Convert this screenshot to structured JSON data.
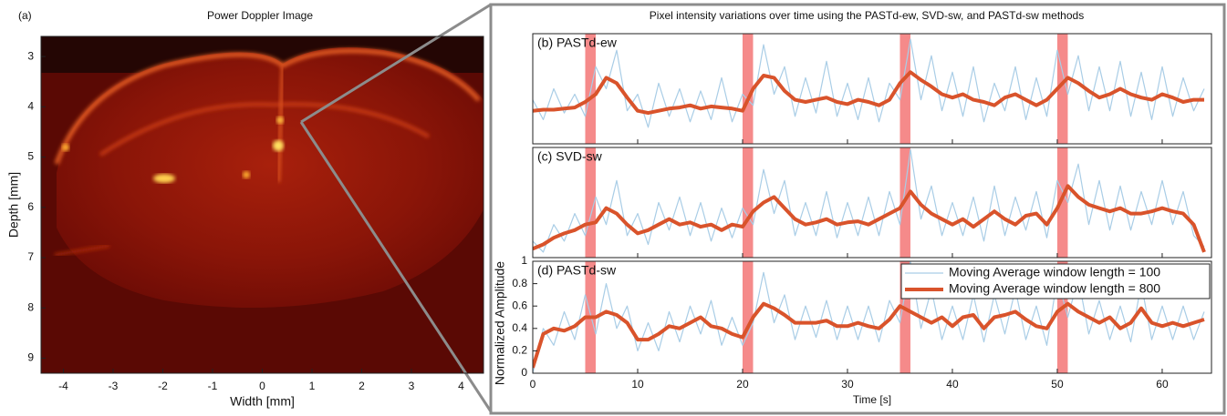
{
  "figure_title": "Pixel intensity variations over time using the PASTd-ew, SVD-sw, and PASTd-sw methods",
  "chart_data": [
    {
      "type": "image",
      "label": "(a)",
      "title": "Power Doppler Image",
      "x_label": "Width [mm]",
      "y_label": "Depth [mm]",
      "xlim": [
        -4.45,
        4.45
      ],
      "ylim": [
        2.6,
        9.3
      ],
      "y_inverted": true,
      "xticks": [
        -4,
        -3,
        -2,
        -1,
        0,
        1,
        2,
        3,
        4
      ],
      "yticks": [
        3,
        4,
        5,
        6,
        7,
        8,
        9
      ]
    },
    {
      "type": "line",
      "label": "(b) PASTd-ew",
      "xlim": [
        0,
        64.7
      ],
      "ylim": [
        0,
        1
      ],
      "highlights": [
        [
          5,
          6
        ],
        [
          20,
          21
        ],
        [
          35,
          36
        ],
        [
          50,
          51
        ]
      ],
      "highlight_color": "#f26d6d",
      "x": [
        0,
        1,
        2,
        3,
        4,
        5,
        6,
        7,
        8,
        9,
        10,
        11,
        12,
        13,
        14,
        15,
        16,
        17,
        18,
        19,
        20,
        21,
        22,
        23,
        24,
        25,
        26,
        27,
        28,
        29,
        30,
        31,
        32,
        33,
        34,
        35,
        36,
        37,
        38,
        39,
        40,
        41,
        42,
        43,
        44,
        45,
        46,
        47,
        48,
        49,
        50,
        51,
        52,
        53,
        54,
        55,
        56,
        57,
        58,
        59,
        60,
        61,
        62,
        63,
        64
      ],
      "series": [
        {
          "color": "#a9cde6",
          "width": 1.2,
          "values": [
            0.4,
            0.22,
            0.5,
            0.28,
            0.45,
            0.25,
            0.7,
            0.5,
            0.85,
            0.3,
            0.45,
            0.15,
            0.55,
            0.25,
            0.5,
            0.2,
            0.48,
            0.22,
            0.6,
            0.2,
            0.45,
            0.35,
            0.9,
            0.45,
            0.7,
            0.25,
            0.6,
            0.28,
            0.75,
            0.25,
            0.55,
            0.22,
            0.6,
            0.2,
            0.55,
            0.4,
            0.95,
            0.4,
            0.8,
            0.3,
            0.65,
            0.25,
            0.7,
            0.2,
            0.55,
            0.3,
            0.7,
            0.22,
            0.6,
            0.25,
            0.85,
            0.45,
            0.8,
            0.3,
            0.7,
            0.3,
            0.75,
            0.25,
            0.65,
            0.22,
            0.7,
            0.25,
            0.6,
            0.3,
            0.5
          ]
        },
        {
          "color": "#d9532b",
          "width": 4,
          "values": [
            0.3,
            0.31,
            0.31,
            0.32,
            0.33,
            0.38,
            0.45,
            0.6,
            0.55,
            0.42,
            0.3,
            0.28,
            0.3,
            0.32,
            0.33,
            0.35,
            0.32,
            0.34,
            0.33,
            0.32,
            0.3,
            0.5,
            0.62,
            0.6,
            0.48,
            0.4,
            0.38,
            0.4,
            0.42,
            0.38,
            0.36,
            0.4,
            0.38,
            0.35,
            0.4,
            0.55,
            0.65,
            0.58,
            0.52,
            0.45,
            0.42,
            0.45,
            0.4,
            0.38,
            0.35,
            0.42,
            0.45,
            0.4,
            0.35,
            0.4,
            0.5,
            0.6,
            0.55,
            0.48,
            0.42,
            0.45,
            0.5,
            0.45,
            0.42,
            0.4,
            0.45,
            0.42,
            0.38,
            0.4,
            0.4
          ]
        }
      ]
    },
    {
      "type": "line",
      "label": "(c) SVD-sw",
      "xlim": [
        0,
        64.7
      ],
      "ylim": [
        0,
        1
      ],
      "highlights": [
        [
          5,
          6
        ],
        [
          20,
          21
        ],
        [
          35,
          36
        ],
        [
          50,
          51
        ]
      ],
      "highlight_color": "#f26d6d",
      "x": [
        0,
        1,
        2,
        3,
        4,
        5,
        6,
        7,
        8,
        9,
        10,
        11,
        12,
        13,
        14,
        15,
        16,
        17,
        18,
        19,
        20,
        21,
        22,
        23,
        24,
        25,
        26,
        27,
        28,
        29,
        30,
        31,
        32,
        33,
        34,
        35,
        36,
        37,
        38,
        39,
        40,
        41,
        42,
        43,
        44,
        45,
        46,
        47,
        48,
        49,
        50,
        51,
        52,
        53,
        54,
        55,
        56,
        57,
        58,
        59,
        60,
        61,
        62,
        63,
        64
      ],
      "series": [
        {
          "color": "#a9cde6",
          "width": 1.2,
          "values": [
            0.15,
            0.05,
            0.3,
            0.15,
            0.4,
            0.2,
            0.55,
            0.3,
            0.7,
            0.2,
            0.4,
            0.12,
            0.5,
            0.25,
            0.55,
            0.2,
            0.5,
            0.15,
            0.45,
            0.18,
            0.45,
            0.3,
            0.8,
            0.4,
            0.7,
            0.2,
            0.5,
            0.2,
            0.6,
            0.18,
            0.5,
            0.2,
            0.55,
            0.2,
            0.6,
            0.3,
            0.98,
            0.35,
            0.65,
            0.2,
            0.5,
            0.2,
            0.55,
            0.15,
            0.65,
            0.2,
            0.55,
            0.25,
            0.6,
            0.18,
            0.7,
            0.5,
            0.85,
            0.3,
            0.7,
            0.25,
            0.65,
            0.25,
            0.6,
            0.3,
            0.7,
            0.3,
            0.6,
            0.2,
            0.1
          ]
        },
        {
          "color": "#d9532b",
          "width": 4,
          "values": [
            0.08,
            0.12,
            0.18,
            0.22,
            0.25,
            0.3,
            0.32,
            0.45,
            0.4,
            0.3,
            0.22,
            0.25,
            0.3,
            0.35,
            0.3,
            0.32,
            0.28,
            0.3,
            0.25,
            0.3,
            0.28,
            0.42,
            0.5,
            0.55,
            0.45,
            0.35,
            0.3,
            0.32,
            0.35,
            0.3,
            0.32,
            0.33,
            0.3,
            0.35,
            0.4,
            0.45,
            0.6,
            0.48,
            0.4,
            0.35,
            0.3,
            0.35,
            0.28,
            0.35,
            0.42,
            0.35,
            0.3,
            0.38,
            0.4,
            0.3,
            0.45,
            0.65,
            0.55,
            0.48,
            0.45,
            0.42,
            0.45,
            0.4,
            0.4,
            0.42,
            0.45,
            0.42,
            0.4,
            0.3,
            0.05
          ]
        }
      ]
    },
    {
      "type": "line",
      "label": "(d) PASTd-sw",
      "x_label": "Time [s]",
      "y_label": "Normalized Amplitude",
      "xlim": [
        0,
        64.7
      ],
      "ylim": [
        0,
        1
      ],
      "xticks": [
        0,
        10,
        20,
        30,
        40,
        50,
        60
      ],
      "yticks": [
        0,
        0.2,
        0.4,
        0.6,
        0.8,
        1
      ],
      "legend": "upper right",
      "highlights": [
        [
          5,
          6
        ],
        [
          20,
          21
        ],
        [
          35,
          36
        ],
        [
          50,
          51
        ]
      ],
      "highlight_color": "#f26d6d",
      "x": [
        0,
        1,
        2,
        3,
        4,
        5,
        6,
        7,
        8,
        9,
        10,
        11,
        12,
        13,
        14,
        15,
        16,
        17,
        18,
        19,
        20,
        21,
        22,
        23,
        24,
        25,
        26,
        27,
        28,
        29,
        30,
        31,
        32,
        33,
        34,
        35,
        36,
        37,
        38,
        39,
        40,
        41,
        42,
        43,
        44,
        45,
        46,
        47,
        48,
        49,
        50,
        51,
        52,
        53,
        54,
        55,
        56,
        57,
        58,
        59,
        60,
        61,
        62,
        63,
        64
      ],
      "series": [
        {
          "name": "Moving Average window length = 100",
          "color": "#a9cde6",
          "width": 1.2,
          "values": [
            0.0,
            0.4,
            0.25,
            0.55,
            0.3,
            0.7,
            0.35,
            0.8,
            0.4,
            0.6,
            0.2,
            0.45,
            0.2,
            0.55,
            0.28,
            0.6,
            0.35,
            0.65,
            0.25,
            0.5,
            0.25,
            0.45,
            0.9,
            0.45,
            0.7,
            0.3,
            0.6,
            0.32,
            0.65,
            0.3,
            0.6,
            0.3,
            0.6,
            0.28,
            0.65,
            0.45,
            1.0,
            0.4,
            0.75,
            0.3,
            0.6,
            0.3,
            0.7,
            0.28,
            0.7,
            0.35,
            0.75,
            0.3,
            0.6,
            0.25,
            0.85,
            0.5,
            0.85,
            0.35,
            0.65,
            0.3,
            0.6,
            0.28,
            0.8,
            0.3,
            0.6,
            0.3,
            0.6,
            0.3,
            0.55
          ]
        },
        {
          "name": "Moving Average window length = 800",
          "color": "#d9532b",
          "width": 4,
          "values": [
            0.05,
            0.35,
            0.4,
            0.38,
            0.42,
            0.5,
            0.5,
            0.55,
            0.52,
            0.45,
            0.3,
            0.3,
            0.35,
            0.42,
            0.4,
            0.45,
            0.5,
            0.42,
            0.4,
            0.35,
            0.32,
            0.5,
            0.62,
            0.58,
            0.52,
            0.45,
            0.45,
            0.45,
            0.47,
            0.42,
            0.42,
            0.45,
            0.42,
            0.4,
            0.48,
            0.6,
            0.55,
            0.5,
            0.45,
            0.5,
            0.42,
            0.5,
            0.52,
            0.4,
            0.5,
            0.52,
            0.55,
            0.48,
            0.42,
            0.4,
            0.55,
            0.62,
            0.55,
            0.5,
            0.45,
            0.5,
            0.4,
            0.45,
            0.58,
            0.45,
            0.42,
            0.45,
            0.42,
            0.45,
            0.48
          ]
        }
      ]
    }
  ]
}
